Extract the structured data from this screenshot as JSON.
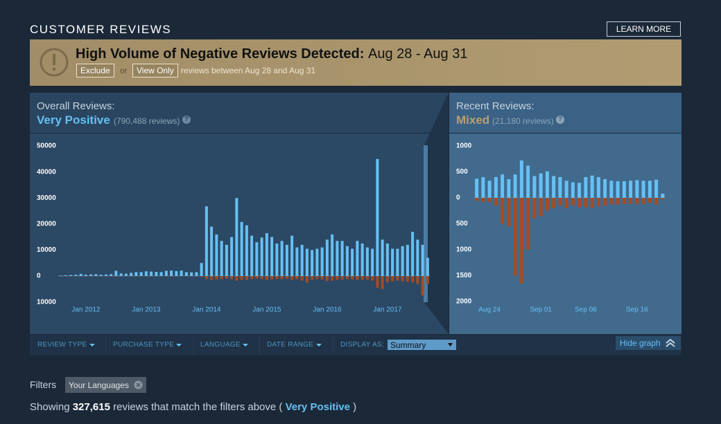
{
  "header": {
    "title": "CUSTOMER REVIEWS",
    "learn_more": "LEARN MORE"
  },
  "alert": {
    "title": "High Volume of Negative Reviews Detected:",
    "dates": "Aug 28 - Aug 31",
    "exclude": "Exclude",
    "or": "or",
    "view_only": "View Only",
    "text": "reviews between Aug 28 and Aug 31"
  },
  "overall": {
    "label": "Overall Reviews:",
    "rating": "Very Positive",
    "count": "(790,488 reviews)",
    "help": "?"
  },
  "recent": {
    "label": "Recent Reviews:",
    "rating": "Mixed",
    "count": "(21,180 reviews)",
    "help": "?"
  },
  "filter_bar": {
    "items": [
      "REVIEW TYPE",
      "PURCHASE TYPE",
      "LANGUAGE",
      "DATE RANGE"
    ],
    "display_as": "DISPLAY AS:",
    "display_value": "Summary",
    "hide_graph": "Hide graph"
  },
  "filters": {
    "label": "Filters",
    "tag": "Your Languages"
  },
  "summary": {
    "showing": "Showing",
    "count": "327,615",
    "text": "reviews that match the filters above (",
    "rating": "Very Positive",
    "close": ")"
  },
  "chart_data": [
    {
      "type": "bar",
      "categories": [
        null,
        null,
        null,
        null,
        null,
        "Jan 2012",
        null,
        null,
        null,
        null,
        null,
        null,
        null,
        null,
        null,
        null,
        null,
        "Jan 2013",
        null,
        null,
        null,
        null,
        null,
        null,
        null,
        null,
        null,
        null,
        null,
        "Jan 2014",
        null,
        null,
        null,
        null,
        null,
        null,
        null,
        null,
        null,
        null,
        null,
        "Jan 2015",
        null,
        null,
        null,
        null,
        null,
        null,
        null,
        null,
        null,
        null,
        null,
        "Jan 2016",
        null,
        null,
        null,
        null,
        null,
        null,
        null,
        null,
        null,
        null,
        null,
        "Jan 2017",
        null,
        null,
        null,
        null,
        null,
        null,
        null,
        null
      ],
      "series": [
        {
          "color": "#66c0f4",
          "values": [
            200,
            300,
            400,
            500,
            800,
            500,
            600,
            700,
            500,
            600,
            700,
            2000,
            1000,
            900,
            1200,
            1500,
            1500,
            1800,
            1700,
            1600,
            1500,
            2000,
            2100,
            1900,
            2100,
            1500,
            1400,
            1500,
            5000,
            26800,
            19000,
            16000,
            13500,
            12000,
            15000,
            30000,
            20800,
            19500,
            15500,
            13000,
            14800,
            16500,
            15000,
            12500,
            13500,
            12000,
            15500,
            11000,
            12000,
            10500,
            10000,
            10500,
            11000,
            14000,
            16000,
            13500,
            13500,
            11500,
            10500,
            13500,
            12500,
            11000,
            10500,
            45000,
            14000,
            12500,
            10500,
            10500,
            11500,
            12000,
            17000,
            14000,
            12000,
            7000
          ]
        },
        {
          "color": "#a34c25",
          "values": [
            -100,
            -100,
            -100,
            -100,
            -100,
            -100,
            -100,
            -100,
            -100,
            -100,
            -100,
            -200,
            -100,
            -100,
            -100,
            -100,
            -100,
            -100,
            -100,
            -100,
            -100,
            -100,
            -200,
            -100,
            -100,
            -100,
            -100,
            -100,
            -300,
            -1200,
            -1500,
            -1300,
            -1200,
            -1000,
            -1200,
            -1800,
            -1500,
            -1500,
            -1200,
            -1000,
            -1200,
            -1500,
            -1300,
            -1200,
            -1200,
            -1100,
            -1500,
            -1200,
            -1800,
            -2500,
            -1500,
            -1200,
            -1300,
            -2000,
            -1800,
            -1500,
            -1400,
            -1200,
            -1300,
            -1500,
            -1500,
            -1400,
            -1800,
            -4500,
            -5000,
            -2500,
            -2000,
            -1800,
            -2000,
            -2200,
            -2500,
            -3000,
            -7500,
            -3000
          ]
        }
      ],
      "ylim": [
        -11000,
        53000
      ],
      "yticks": [
        50000,
        40000,
        30000,
        20000,
        10000,
        0,
        {
          "value": -10000,
          "label": "10000"
        }
      ]
    },
    {
      "type": "bar",
      "categories": [
        null,
        null,
        "Aug 24",
        null,
        null,
        null,
        null,
        null,
        null,
        null,
        "Sep 01",
        null,
        null,
        null,
        null,
        null,
        null,
        "Sep 08",
        null,
        null,
        null,
        null,
        null,
        null,
        null,
        "Sep 16",
        null,
        null,
        null,
        null
      ],
      "series": [
        {
          "color": "#66c0f4",
          "values": [
            370,
            400,
            330,
            400,
            450,
            360,
            450,
            720,
            620,
            420,
            470,
            510,
            420,
            400,
            330,
            300,
            290,
            400,
            430,
            400,
            360,
            330,
            320,
            320,
            330,
            340,
            330,
            330,
            350,
            80
          ]
        },
        {
          "color": "#a34c25",
          "values": [
            -60,
            -80,
            -80,
            -150,
            -500,
            -550,
            -1500,
            -1650,
            -1000,
            -400,
            -350,
            -250,
            -200,
            -150,
            -200,
            -150,
            -180,
            -180,
            -200,
            -170,
            -150,
            -130,
            -130,
            -120,
            -120,
            -120,
            -120,
            -100,
            -130,
            -30
          ]
        }
      ],
      "ylim": [
        -2100,
        1150
      ],
      "yticks": [
        1000,
        500,
        0,
        {
          "value": -500,
          "label": "500"
        },
        {
          "value": -1000,
          "label": "1000"
        },
        {
          "value": -1500,
          "label": "1500"
        },
        {
          "value": -2000,
          "label": "2000"
        }
      ]
    }
  ]
}
